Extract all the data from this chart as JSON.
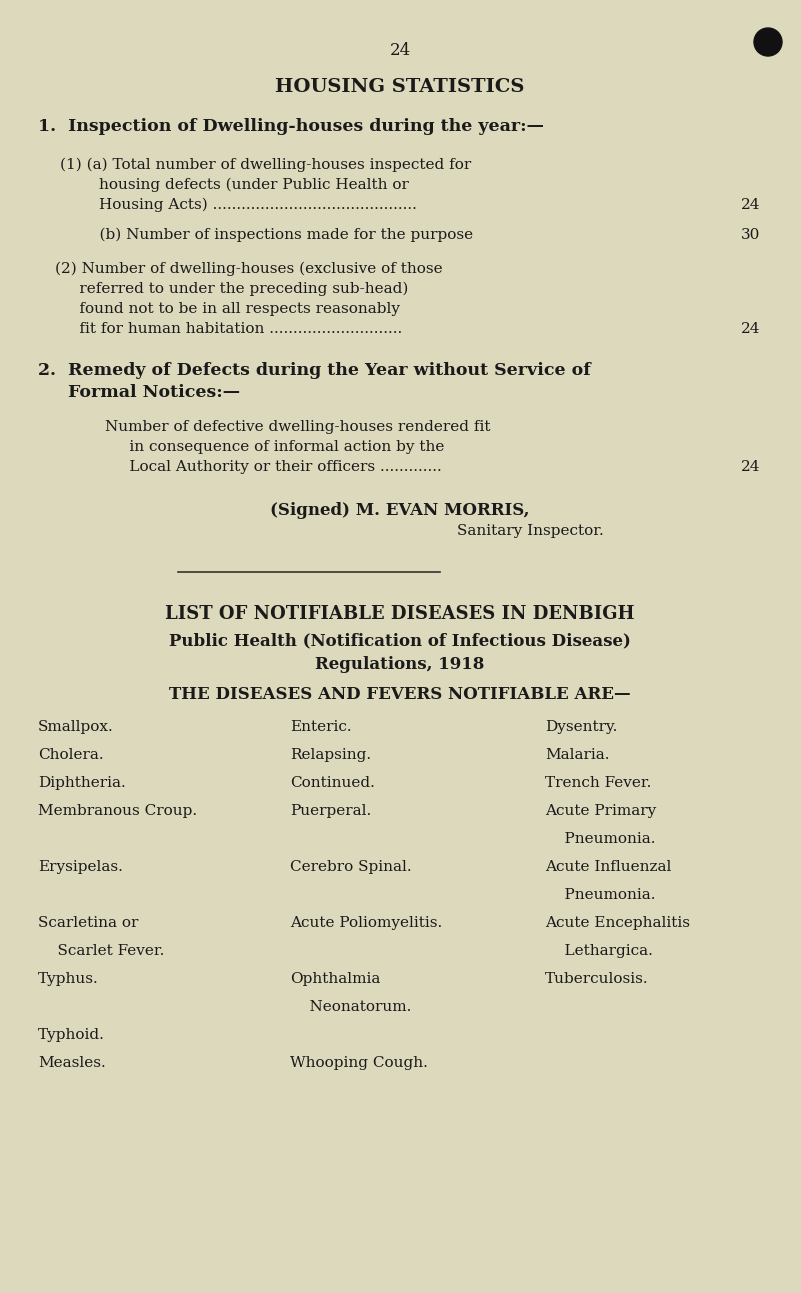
{
  "bg_color": "#ddd9bc",
  "text_color": "#1a1a1a",
  "page_number": "24",
  "title": "HOUSING STATISTICS",
  "s1h": "1.  Inspection of Dwelling-houses during the year:—",
  "l1a1": "(1) (a) Total number of dwelling-houses inspected for",
  "l1a2": "        housing defects (under Public Health or",
  "l1a3": "        Housing Acts) ...........................................",
  "v1a": "24",
  "l1b": "    (b) Number of inspections made for the purpose",
  "v1b": "30",
  "l2_1": "(2) Number of dwelling-houses (exclusive of those",
  "l2_2": "     referred to under the preceding sub-head)",
  "l2_3": "     found not to be in all respects reasonably",
  "l2_4": "     fit for human habitation ............................",
  "v2": "24",
  "s2h1": "2.  Remedy of Defects during the Year without Service of",
  "s2h2": "     Formal Notices:—",
  "r1": "Number of defective dwelling-houses rendered fit",
  "r2": "     in consequence of informal action by the",
  "r3": "     Local Authority or their officers .............",
  "vr": "24",
  "signed": "(Signed) M. EVAN MORRIS,",
  "signed2": "Sanitary Inspector.",
  "list_title": "LIST OF NOTIFIABLE DISEASES IN DENBIGH",
  "list_sub1": "Public Health (Notification of Infectious Disease)",
  "list_sub2": "Regulations, 1918",
  "list_head": "THE DISEASES AND FEVERS NOTIFIABLE ARE—",
  "rows": [
    [
      "Smallpox.",
      "Enteric.",
      "Dysentry."
    ],
    [
      "Cholera.",
      "Relapsing.",
      "Malaria."
    ],
    [
      "Diphtheria.",
      "Continued.",
      "Trench Fever."
    ],
    [
      "Membranous Croup.",
      "Puerperal.",
      "Acute Primary"
    ],
    [
      "",
      "",
      "    Pneumonia."
    ],
    [
      "Erysipelas.",
      "Cerebro Spinal.",
      "Acute Influenzal"
    ],
    [
      "",
      "",
      "    Pneumonia."
    ],
    [
      "Scarletina or",
      "Acute Poliomyelitis.",
      "Acute Encephalitis"
    ],
    [
      "    Scarlet Fever.",
      "",
      "    Lethargica."
    ],
    [
      "Typhus.",
      "Ophthalmia",
      "Tuberculosis."
    ],
    [
      "",
      "    Neonatorum.",
      ""
    ],
    [
      "Typhoid.",
      "",
      ""
    ],
    [
      "Measles.",
      "Whooping Cough.",
      ""
    ]
  ]
}
